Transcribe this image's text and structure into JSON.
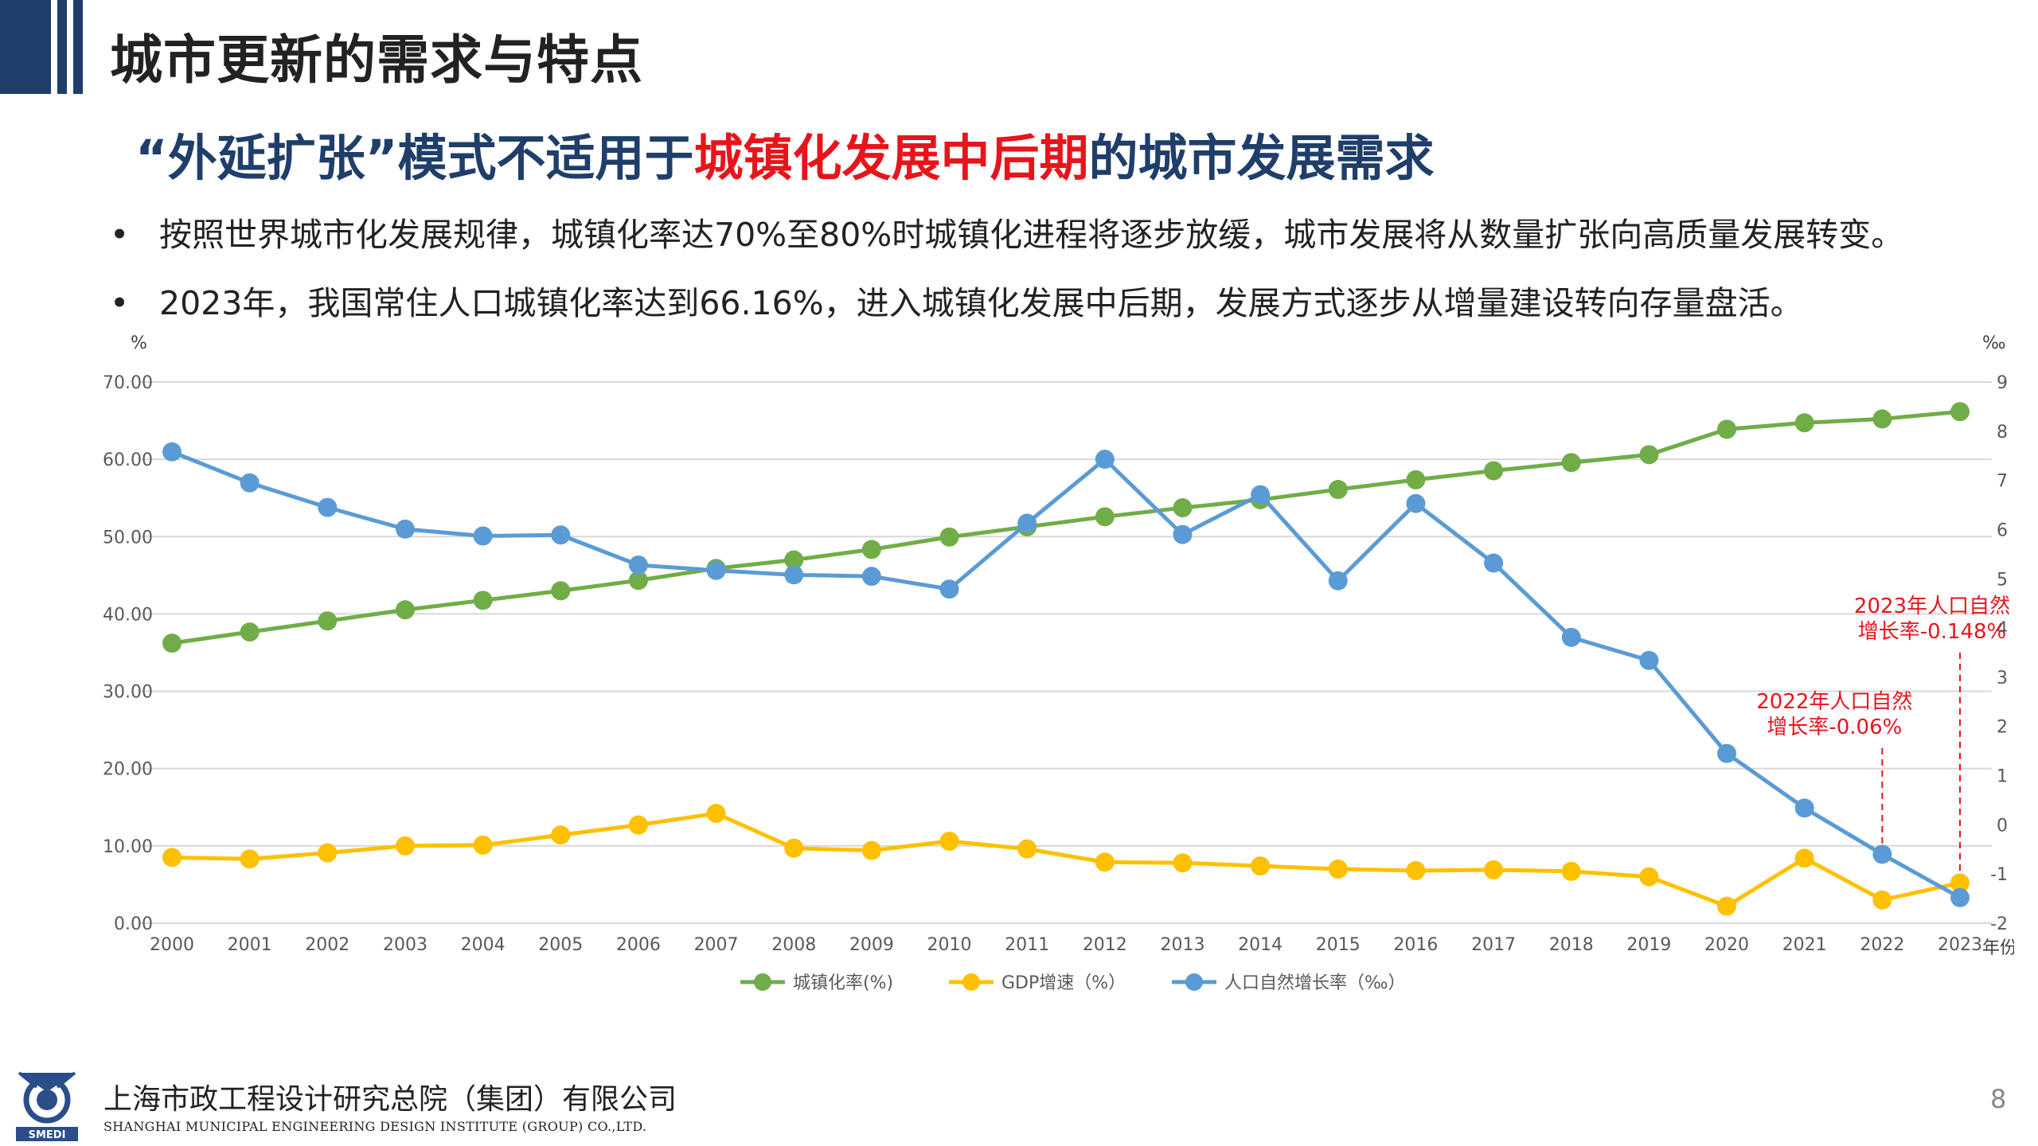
{
  "slide": {
    "title": "城市更新的需求与特点",
    "subtitle_part1": "“外延扩张”模式不适用于",
    "subtitle_highlight": "城镇化发展中后期",
    "subtitle_part2": "的城市发展需求",
    "bullet_glyph": "•",
    "bullets": [
      "按照世界城市化发展规律，城镇化率达70%至80%时城镇化进程将逐步放缓，城市发展将从数量扩张向高质量发展转变。",
      "2023年，我国常住人口城镇化率达到66.16%，进入城镇化发展中后期，发展方式逐步从增量建设转向存量盘活。"
    ],
    "page_number": "8",
    "highlight_color": "#e8141c",
    "title_bar_color": "#1f3e6a"
  },
  "footer": {
    "org_cn": "上海市政工程设计研究总院（集团）有限公司",
    "org_en": "SHANGHAI MUNICIPAL ENGINEERING DESIGN INSTITUTE (GROUP) CO.,LTD.",
    "logo_text": "SMEDI"
  },
  "chart_data": {
    "type": "line",
    "x": [
      "2000",
      "2001",
      "2002",
      "2003",
      "2004",
      "2005",
      "2006",
      "2007",
      "2008",
      "2009",
      "2010",
      "2011",
      "2012",
      "2013",
      "2014",
      "2015",
      "2016",
      "2017",
      "2018",
      "2019",
      "2020",
      "2021",
      "2022",
      "2023"
    ],
    "x_unit": "年份",
    "y_left": {
      "unit": "%",
      "range": [
        0,
        70
      ],
      "ticks": [
        "0.00",
        "10.00",
        "20.00",
        "30.00",
        "40.00",
        "50.00",
        "60.00",
        "70.00"
      ]
    },
    "y_right": {
      "unit": "‰",
      "range": [
        -2,
        9
      ],
      "ticks": [
        "-2",
        "-1",
        "0",
        "1",
        "2",
        "3",
        "4",
        "5",
        "6",
        "7",
        "8",
        "9"
      ]
    },
    "grid": true,
    "legend_position": "bottom",
    "series": [
      {
        "name": "城镇化率(%)",
        "axis": "left",
        "color": "#70ad47",
        "values": [
          36.22,
          37.66,
          39.09,
          40.53,
          41.76,
          42.99,
          44.34,
          45.89,
          46.99,
          48.34,
          49.95,
          51.27,
          52.57,
          53.73,
          54.77,
          56.1,
          57.35,
          58.52,
          59.58,
          60.6,
          63.89,
          64.72,
          65.22,
          66.16
        ]
      },
      {
        "name": "GDP增速（%）",
        "axis": "left",
        "color": "#ffc000",
        "values": [
          8.5,
          8.3,
          9.1,
          10.0,
          10.1,
          11.4,
          12.7,
          14.2,
          9.7,
          9.4,
          10.6,
          9.6,
          7.9,
          7.8,
          7.4,
          7.0,
          6.8,
          6.9,
          6.7,
          6.0,
          2.2,
          8.4,
          3.0,
          5.2
        ]
      },
      {
        "name": "人口自然增长率（‰）",
        "axis": "right",
        "color": "#5b9bd5",
        "values": [
          7.58,
          6.95,
          6.45,
          6.01,
          5.87,
          5.89,
          5.28,
          5.17,
          5.08,
          5.05,
          4.79,
          6.13,
          7.43,
          5.9,
          6.71,
          4.96,
          6.53,
          5.32,
          3.81,
          3.34,
          1.45,
          0.34,
          -0.6,
          -1.48
        ]
      }
    ],
    "annotations": [
      {
        "lines": [
          "2023年人口自然",
          "增长率-0.148%"
        ],
        "year": "2023"
      },
      {
        "lines": [
          "2022年人口自然",
          "增长率-0.06%"
        ],
        "year": "2022"
      }
    ]
  }
}
